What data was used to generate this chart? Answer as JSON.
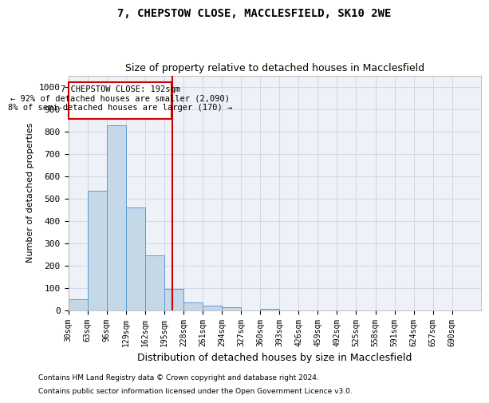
{
  "title1": "7, CHEPSTOW CLOSE, MACCLESFIELD, SK10 2WE",
  "title2": "Size of property relative to detached houses in Macclesfield",
  "xlabel": "Distribution of detached houses by size in Macclesfield",
  "ylabel": "Number of detached properties",
  "footnote1": "Contains HM Land Registry data © Crown copyright and database right 2024.",
  "footnote2": "Contains public sector information licensed under the Open Government Licence v3.0.",
  "annotation_line1": "7 CHEPSTOW CLOSE: 192sqm",
  "annotation_line2": "← 92% of detached houses are smaller (2,090)",
  "annotation_line3": "8% of semi-detached houses are larger (170) →",
  "bar_color": "#c5d8e8",
  "bar_edge_color": "#5b9bd5",
  "vline_x": 192,
  "vline_color": "#cc0000",
  "ylim": [
    0,
    1050
  ],
  "xlim": [
    16.5,
    723.5
  ],
  "categories": [
    30,
    63,
    96,
    129,
    162,
    195,
    228,
    261,
    294,
    327,
    360,
    393,
    426,
    459,
    492,
    525,
    558,
    591,
    624,
    657,
    690
  ],
  "bin_width": 33,
  "values": [
    50,
    533,
    828,
    460,
    245,
    97,
    35,
    20,
    12,
    0,
    5,
    0,
    0,
    0,
    0,
    0,
    0,
    0,
    0,
    0,
    0
  ],
  "tick_labels": [
    "30sqm",
    "63sqm",
    "96sqm",
    "129sqm",
    "162sqm",
    "195sqm",
    "228sqm",
    "261sqm",
    "294sqm",
    "327sqm",
    "360sqm",
    "393sqm",
    "426sqm",
    "459sqm",
    "492sqm",
    "525sqm",
    "558sqm",
    "591sqm",
    "624sqm",
    "657sqm",
    "690sqm"
  ],
  "yticks": [
    0,
    100,
    200,
    300,
    400,
    500,
    600,
    700,
    800,
    900,
    1000
  ],
  "grid_color": "#d0d8e8",
  "bg_color": "#eef2f8",
  "annotation_box_color": "#cc0000"
}
